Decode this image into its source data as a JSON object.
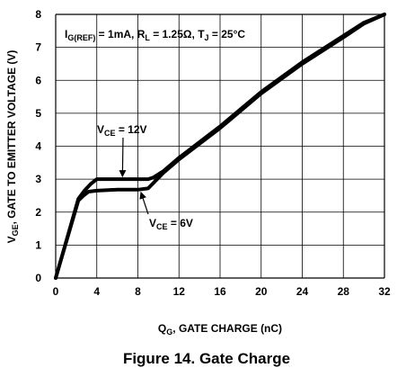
{
  "chart_data": {
    "type": "line",
    "caption": "Figure 14.  Gate Charge",
    "xlabel": {
      "main": "Q",
      "sub": "G",
      "rest": ", GATE CHARGE (nC)"
    },
    "ylabel": {
      "main": "V",
      "sub": "GE",
      "rest": ", GATE TO EMITTER VOLTAGE (V)"
    },
    "xlim": [
      0,
      32
    ],
    "ylim": [
      0,
      8
    ],
    "xticks": [
      0,
      4,
      8,
      12,
      16,
      20,
      24,
      28,
      32
    ],
    "yticks": [
      0,
      1,
      2,
      3,
      4,
      5,
      6,
      7,
      8
    ],
    "grid": true,
    "conditions": {
      "i_main": "I",
      "i_sub": "G(REF)",
      "i_rest": " = 1mA, R",
      "r_sub": "L",
      "r_rest": " = 1.25Ω,  T",
      "t_sub": "J",
      "t_rest": " = 25°C"
    },
    "series": [
      {
        "name": "VCE = 12V",
        "x": [
          0,
          2.2,
          2.8,
          3.4,
          4.0,
          6.0,
          8.0,
          9.0,
          9.5,
          10.5,
          12,
          16,
          20,
          24,
          28,
          30,
          32
        ],
        "y": [
          0,
          2.4,
          2.65,
          2.85,
          3.0,
          3.0,
          3.0,
          3.0,
          3.05,
          3.25,
          3.65,
          4.6,
          5.65,
          6.55,
          7.35,
          7.75,
          8.0
        ]
      },
      {
        "name": "VCE = 6V",
        "x": [
          0,
          2.2,
          2.7,
          3.2,
          4.0,
          6.0,
          8.0,
          9.0,
          10.5,
          12,
          16,
          20,
          24,
          28,
          30,
          32
        ],
        "y": [
          0,
          2.35,
          2.5,
          2.62,
          2.65,
          2.68,
          2.68,
          2.72,
          3.2,
          3.6,
          4.55,
          5.6,
          6.5,
          7.3,
          7.72,
          8.0
        ]
      }
    ],
    "annotations": [
      {
        "id": "vce12",
        "main": "V",
        "sub": "CE",
        "rest": " = 12V",
        "arrow_to": {
          "x": 6.5,
          "y": 3.0
        }
      },
      {
        "id": "vce6",
        "main": "V",
        "sub": "CE",
        "rest": " = 6V",
        "arrow_to": {
          "x": 8.3,
          "y": 2.68
        }
      }
    ]
  }
}
